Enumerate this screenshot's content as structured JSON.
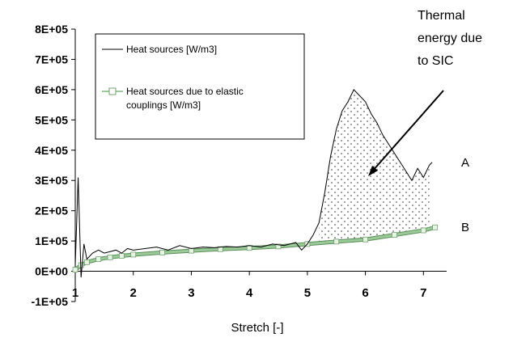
{
  "chart_data": {
    "type": "line",
    "title": "",
    "xlabel": "Stretch [-]",
    "ylabel": "",
    "xlim": [
      1,
      7.4
    ],
    "ylim": [
      -100000,
      800000
    ],
    "x_ticks": [
      "1",
      "2",
      "3",
      "4",
      "5",
      "6",
      "7"
    ],
    "y_ticks": [
      "-1E+05",
      "0E+00",
      "1E+05",
      "2E+05",
      "3E+05",
      "4E+05",
      "5E+05",
      "6E+05",
      "7E+05",
      "8E+05"
    ],
    "grid": false,
    "legend_position": "top-left",
    "series": [
      {
        "name": "Heat sources [W/m3]",
        "style": "thin black line, noisy",
        "color": "#000000",
        "x": [
          1.0,
          1.05,
          1.1,
          1.15,
          1.2,
          1.3,
          1.4,
          1.5,
          1.6,
          1.7,
          1.8,
          1.9,
          2.0,
          2.2,
          2.4,
          2.6,
          2.8,
          3.0,
          3.2,
          3.4,
          3.6,
          3.8,
          4.0,
          4.2,
          4.4,
          4.6,
          4.8,
          4.9,
          5.0,
          5.1,
          5.2,
          5.3,
          5.4,
          5.5,
          5.6,
          5.7,
          5.8,
          5.9,
          6.0,
          6.1,
          6.2,
          6.3,
          6.4,
          6.5,
          6.6,
          6.7,
          6.8,
          6.9,
          7.0,
          7.1,
          7.15
        ],
        "y": [
          20000,
          310000,
          -20000,
          90000,
          40000,
          60000,
          70000,
          60000,
          65000,
          70000,
          60000,
          75000,
          70000,
          75000,
          80000,
          70000,
          85000,
          75000,
          80000,
          78000,
          82000,
          80000,
          85000,
          80000,
          90000,
          85000,
          95000,
          70000,
          90000,
          120000,
          160000,
          260000,
          380000,
          470000,
          530000,
          560000,
          600000,
          580000,
          560000,
          520000,
          490000,
          450000,
          420000,
          390000,
          360000,
          330000,
          300000,
          340000,
          310000,
          350000,
          360000
        ]
      },
      {
        "name": "Heat sources due to elastic couplings [W/m3]",
        "style": "thick green line with square markers",
        "color": "#9cc99a",
        "x": [
          1.0,
          1.1,
          1.2,
          1.4,
          1.6,
          1.8,
          2.0,
          2.5,
          3.0,
          3.5,
          4.0,
          4.5,
          5.0,
          5.5,
          6.0,
          6.5,
          7.0,
          7.2
        ],
        "y": [
          5000,
          20000,
          30000,
          40000,
          46000,
          51000,
          55000,
          62000,
          68000,
          73000,
          77000,
          82000,
          90000,
          98000,
          105000,
          120000,
          135000,
          145000
        ]
      }
    ],
    "annotations": [
      {
        "text_lines": [
          "Thermal",
          "energy due",
          "to SIC"
        ],
        "arrow_from": [
          6.9,
          550000
        ],
        "arrow_to": [
          6.1,
          350000
        ]
      },
      {
        "text": "A",
        "near": "right end of noisy curve"
      },
      {
        "text": "B",
        "near": "right end of elastic-coupling curve"
      }
    ],
    "shaded_region": {
      "description": "stippled area between curves A and B",
      "x_range": [
        5.2,
        7.1
      ]
    }
  }
}
